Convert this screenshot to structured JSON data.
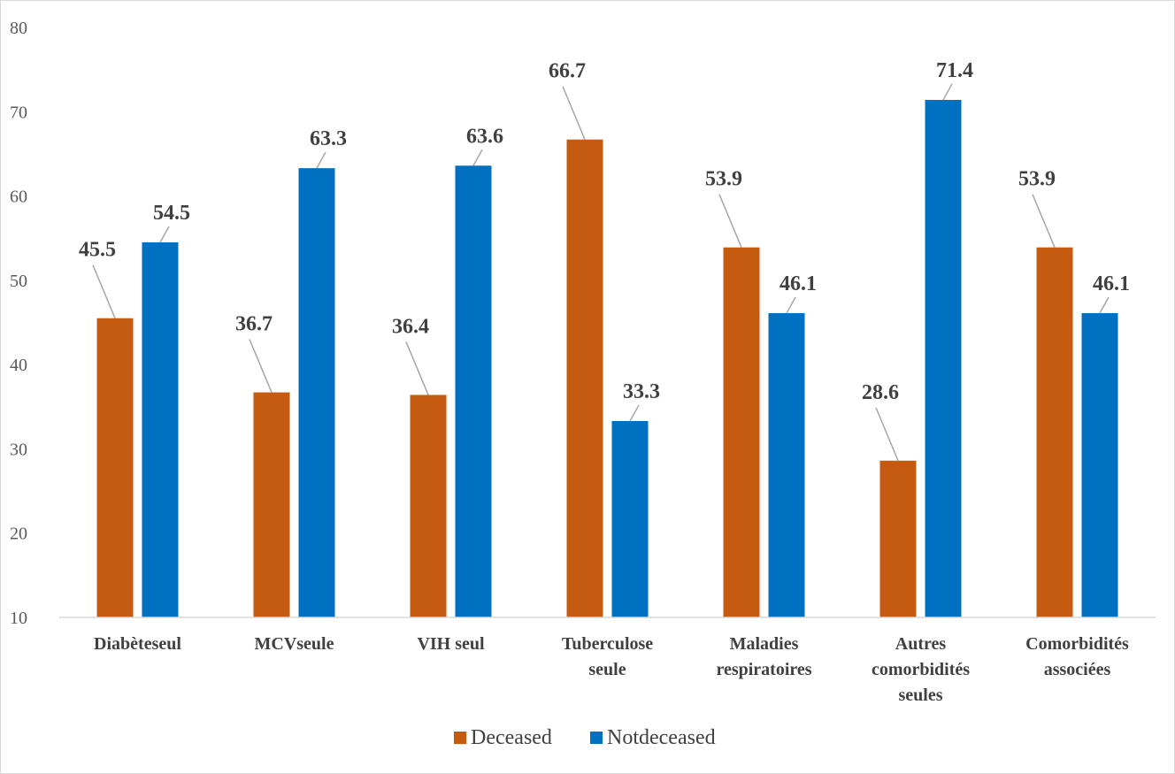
{
  "chart_data": {
    "type": "bar",
    "title": "",
    "xlabel": "",
    "ylabel": "",
    "ylim": [
      10,
      80
    ],
    "y_ticks": [
      "10",
      "20",
      "30",
      "40",
      "50",
      "60",
      "70",
      "80"
    ],
    "y_tick_values": [
      10,
      20,
      30,
      40,
      50,
      60,
      70,
      80
    ],
    "categories": [
      [
        "Diabèteseul"
      ],
      [
        "MCVseule"
      ],
      [
        "VIH seul"
      ],
      [
        "Tuberculose",
        "seule"
      ],
      [
        "Maladies",
        "respiratoires"
      ],
      [
        "Autres",
        "comorbidités",
        "seules"
      ],
      [
        "Comorbidités",
        "associées"
      ]
    ],
    "series": [
      {
        "name": "Deceased",
        "color": "#c55a11",
        "values": [
          45.5,
          36.7,
          36.4,
          66.7,
          53.9,
          28.6,
          53.9
        ],
        "labels": [
          "45.5",
          "36.7",
          "36.4",
          "66.7",
          "53.9",
          "28.6",
          "53.9"
        ]
      },
      {
        "name": "Notdeceased",
        "color": "#0070c0",
        "values": [
          54.5,
          63.3,
          63.6,
          33.3,
          46.1,
          71.4,
          46.1
        ],
        "labels": [
          "54.5",
          "63.3",
          "63.6",
          "33.3",
          "46.1",
          "71.4",
          "46.1"
        ]
      }
    ],
    "legend_position": "bottom",
    "grid": false
  }
}
